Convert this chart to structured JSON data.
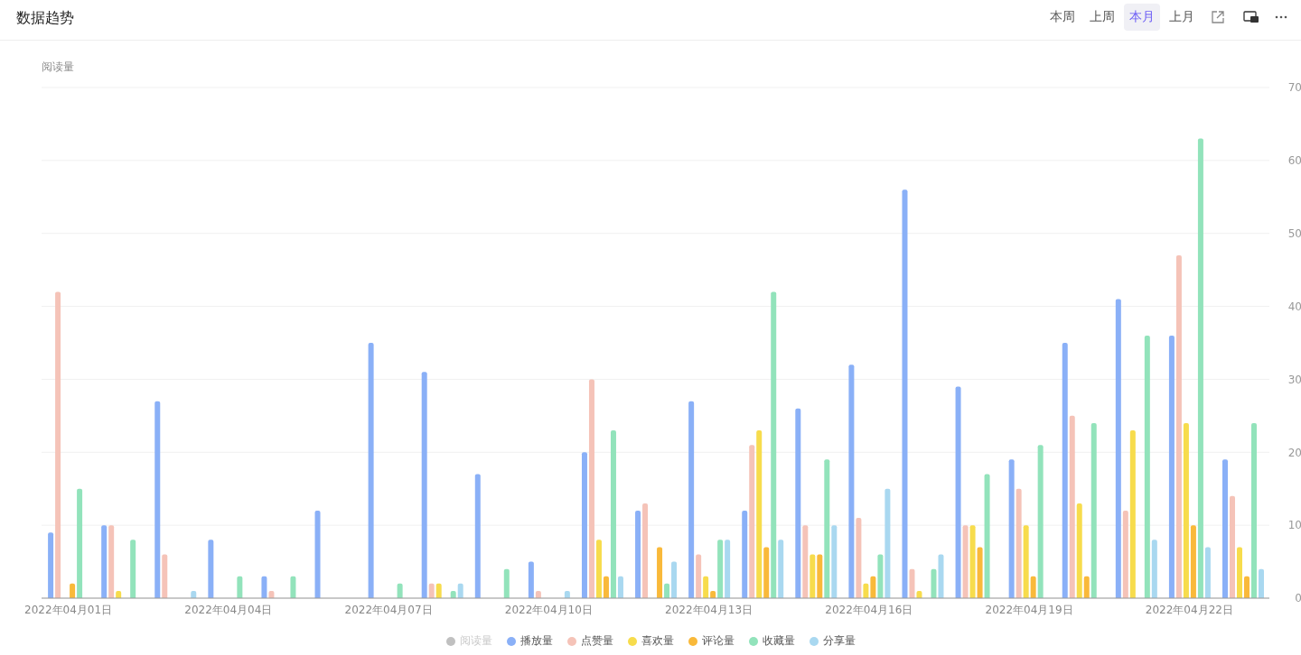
{
  "chart_data": {
    "type": "bar",
    "title": "数据趋势",
    "ylabel": "阅读量",
    "categories": [
      "2022年04月01日",
      null,
      null,
      "2022年04月04日",
      null,
      null,
      "2022年04月07日",
      null,
      null,
      "2022年04月10日",
      null,
      null,
      "2022年04月13日",
      null,
      null,
      "2022年04月16日",
      null,
      null,
      "2022年04月19日",
      null,
      null,
      "2022年04月22日",
      null
    ],
    "series": [
      {
        "name": "阅读量",
        "color": "#c0c0c0",
        "values": [
          null,
          null,
          null,
          null,
          null,
          null,
          null,
          null,
          null,
          null,
          null,
          null,
          null,
          null,
          null,
          null,
          null,
          null,
          null,
          null,
          null,
          null,
          null
        ]
      },
      {
        "name": "播放量",
        "color": "#8ab0f7",
        "values": [
          9,
          10,
          27,
          8,
          3,
          12,
          35,
          31,
          17,
          5,
          20,
          12,
          27,
          12,
          26,
          32,
          56,
          29,
          19,
          35,
          41,
          36,
          19
        ]
      },
      {
        "name": "点赞量",
        "color": "#f5c3b8",
        "values": [
          42,
          10,
          6,
          0,
          1,
          0,
          0,
          2,
          0,
          1,
          30,
          13,
          6,
          21,
          10,
          11,
          4,
          10,
          15,
          25,
          12,
          47,
          14
        ]
      },
      {
        "name": "喜欢量",
        "color": "#f7dc4c",
        "values": [
          0,
          1,
          0,
          0,
          0,
          0,
          0,
          2,
          0,
          0,
          8,
          0,
          3,
          23,
          6,
          2,
          1,
          10,
          10,
          13,
          23,
          24,
          7
        ]
      },
      {
        "name": "评论量",
        "color": "#f9b93a",
        "values": [
          2,
          0,
          0,
          0,
          0,
          0,
          0,
          0,
          0,
          0,
          3,
          7,
          1,
          7,
          6,
          3,
          0,
          7,
          3,
          3,
          0,
          10,
          3
        ]
      },
      {
        "name": "收藏量",
        "color": "#92e3bb",
        "values": [
          15,
          8,
          0,
          3,
          3,
          0,
          2,
          1,
          4,
          0,
          23,
          2,
          8,
          42,
          19,
          6,
          4,
          17,
          21,
          24,
          36,
          63,
          24
        ]
      },
      {
        "name": "分享量",
        "color": "#a9d8f0",
        "values": [
          0,
          0,
          1,
          0,
          0,
          0,
          0,
          2,
          0,
          1,
          3,
          5,
          8,
          8,
          10,
          15,
          6,
          0,
          0,
          0,
          8,
          7,
          4
        ]
      }
    ],
    "ylim": [
      0,
      70
    ],
    "yticks": [
      0,
      10,
      20,
      30,
      40,
      50,
      60,
      70
    ],
    "grid": "y",
    "legend": "bottom",
    "annotations": [
      "本周",
      "上周",
      "本月",
      "上月"
    ]
  }
}
